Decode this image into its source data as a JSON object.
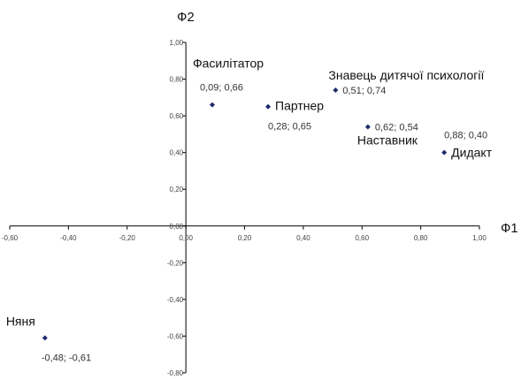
{
  "chart_data": {
    "type": "scatter",
    "xlabel": "Ф1",
    "ylabel": "Ф2",
    "xlim": [
      -0.6,
      1.0
    ],
    "ylim": [
      -0.8,
      1.0
    ],
    "x_ticks": [
      "-0,60",
      "-0,40",
      "-0,20",
      "0,00",
      "0,20",
      "0,40",
      "0,60",
      "0,80",
      "1,00"
    ],
    "y_ticks": [
      "1,00",
      "0,80",
      "0,60",
      "0,40",
      "0,20",
      "0,00",
      "-0,20",
      "-0,40",
      "-0,60",
      "-0,80"
    ],
    "grid": false,
    "points": [
      {
        "name": "Фасилітатор",
        "x": 0.09,
        "y": 0.66,
        "coord_label": "0,09; 0,66"
      },
      {
        "name": "Партнер",
        "x": 0.28,
        "y": 0.65,
        "coord_label": "0,28; 0,65"
      },
      {
        "name": "Знавець дитячої психології",
        "x": 0.51,
        "y": 0.74,
        "coord_label": "0,51; 0,74"
      },
      {
        "name": "Наставник",
        "x": 0.62,
        "y": 0.54,
        "coord_label": "0,62; 0,54"
      },
      {
        "name": "Дидакт",
        "x": 0.88,
        "y": 0.4,
        "coord_label": "0,88; 0,40"
      },
      {
        "name": "Няня",
        "x": -0.48,
        "y": -0.61,
        "coord_label": "-0,48; -0,61"
      }
    ],
    "marker_color": "#1f2a6b"
  }
}
